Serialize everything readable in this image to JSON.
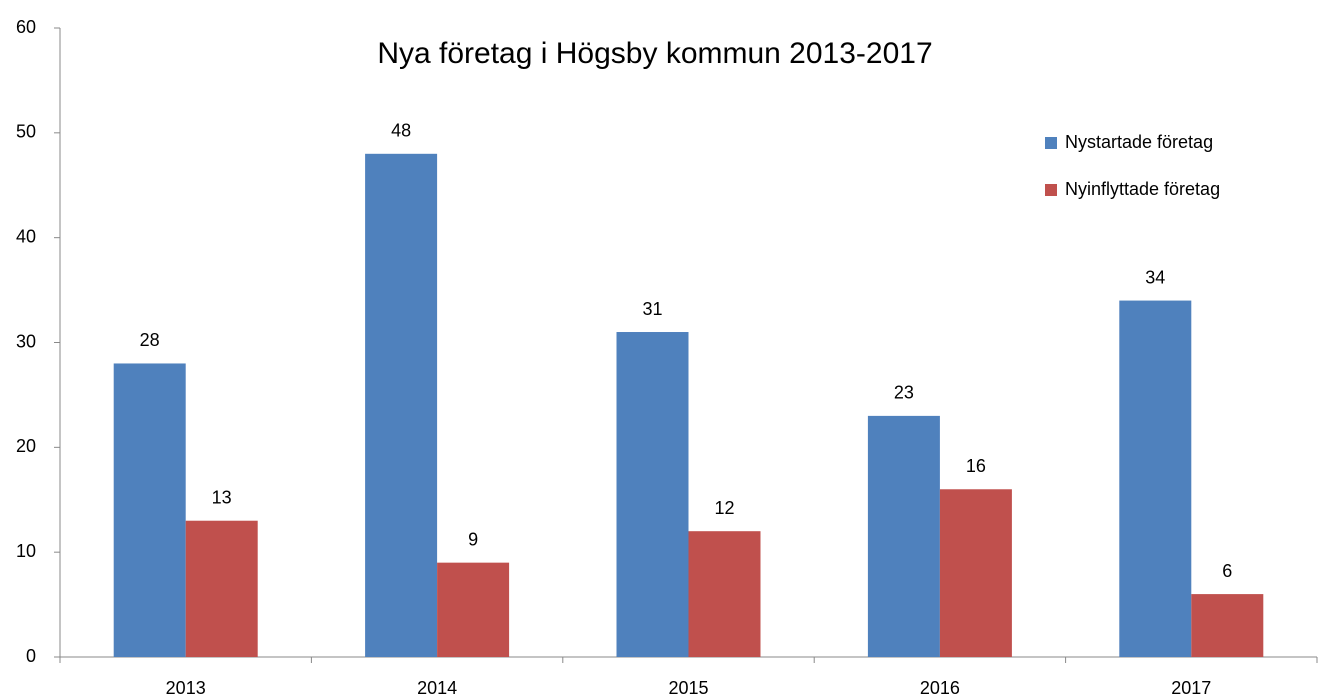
{
  "chart_data": {
    "type": "bar",
    "title": "Nya företag i Högsby kommun 2013-2017",
    "categories": [
      "2013",
      "2014",
      "2015",
      "2016",
      "2017"
    ],
    "series": [
      {
        "name": "Nystartade företag",
        "color": "#4f81bd",
        "values": [
          28,
          48,
          31,
          23,
          34
        ]
      },
      {
        "name": "Nyinflyttade företag",
        "color": "#c0504d",
        "values": [
          13,
          9,
          12,
          16,
          6
        ]
      }
    ],
    "ylim": [
      0,
      60
    ],
    "yticks": [
      0,
      10,
      20,
      30,
      40,
      50,
      60
    ],
    "grid": false,
    "legend": "right"
  }
}
